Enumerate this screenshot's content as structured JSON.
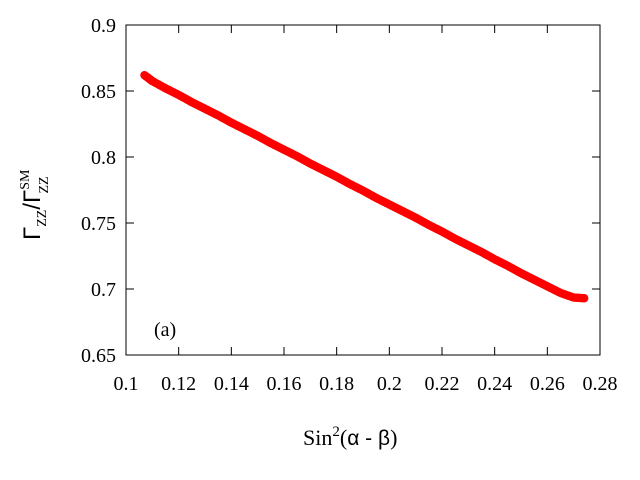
{
  "chart_data": {
    "type": "scatter",
    "xlim": [
      0.1,
      0.28
    ],
    "ylim": [
      0.65,
      0.9
    ],
    "x_ticks": [
      0.1,
      0.12,
      0.14,
      0.16,
      0.18,
      0.2,
      0.22,
      0.24,
      0.26,
      0.28
    ],
    "x_tick_labels": [
      "0.1",
      "0.12",
      "0.14",
      "0.16",
      "0.18",
      "0.2",
      "0.22",
      "0.24",
      "0.26",
      "0.28"
    ],
    "y_ticks": [
      0.65,
      0.7,
      0.75,
      0.8,
      0.85,
      0.9
    ],
    "y_tick_labels": [
      "0.65",
      "0.7",
      "0.75",
      "0.8",
      "0.85",
      "0.9"
    ],
    "xlabel": {
      "prefix": "Sin",
      "sup": "2",
      "open": "(",
      "expr": "α - β",
      "close": ")"
    },
    "ylabel": {
      "base": "Γ",
      "sub": "ZZ",
      "slash": "/Γ",
      "sub2": "ZZ",
      "sup2": "SM"
    },
    "panel_label": "(a)",
    "grid": false,
    "marker_color": "#ff0000",
    "series": [
      {
        "x": [
          0.107,
          0.11,
          0.115,
          0.12,
          0.125,
          0.13,
          0.135,
          0.14,
          0.145,
          0.15,
          0.155,
          0.16,
          0.165,
          0.17,
          0.175,
          0.18,
          0.185,
          0.19,
          0.195,
          0.2,
          0.205,
          0.21,
          0.215,
          0.22,
          0.225,
          0.23,
          0.235,
          0.24,
          0.245,
          0.25,
          0.255,
          0.26,
          0.265,
          0.27,
          0.274
        ],
        "y": [
          0.862,
          0.8575,
          0.852,
          0.847,
          0.8415,
          0.8365,
          0.8315,
          0.826,
          0.821,
          0.816,
          0.8105,
          0.8055,
          0.8005,
          0.795,
          0.79,
          0.785,
          0.7795,
          0.7745,
          0.769,
          0.764,
          0.759,
          0.754,
          0.7485,
          0.7435,
          0.738,
          0.733,
          0.728,
          0.7225,
          0.7175,
          0.712,
          0.707,
          0.702,
          0.697,
          0.6935,
          0.693
        ]
      }
    ]
  }
}
